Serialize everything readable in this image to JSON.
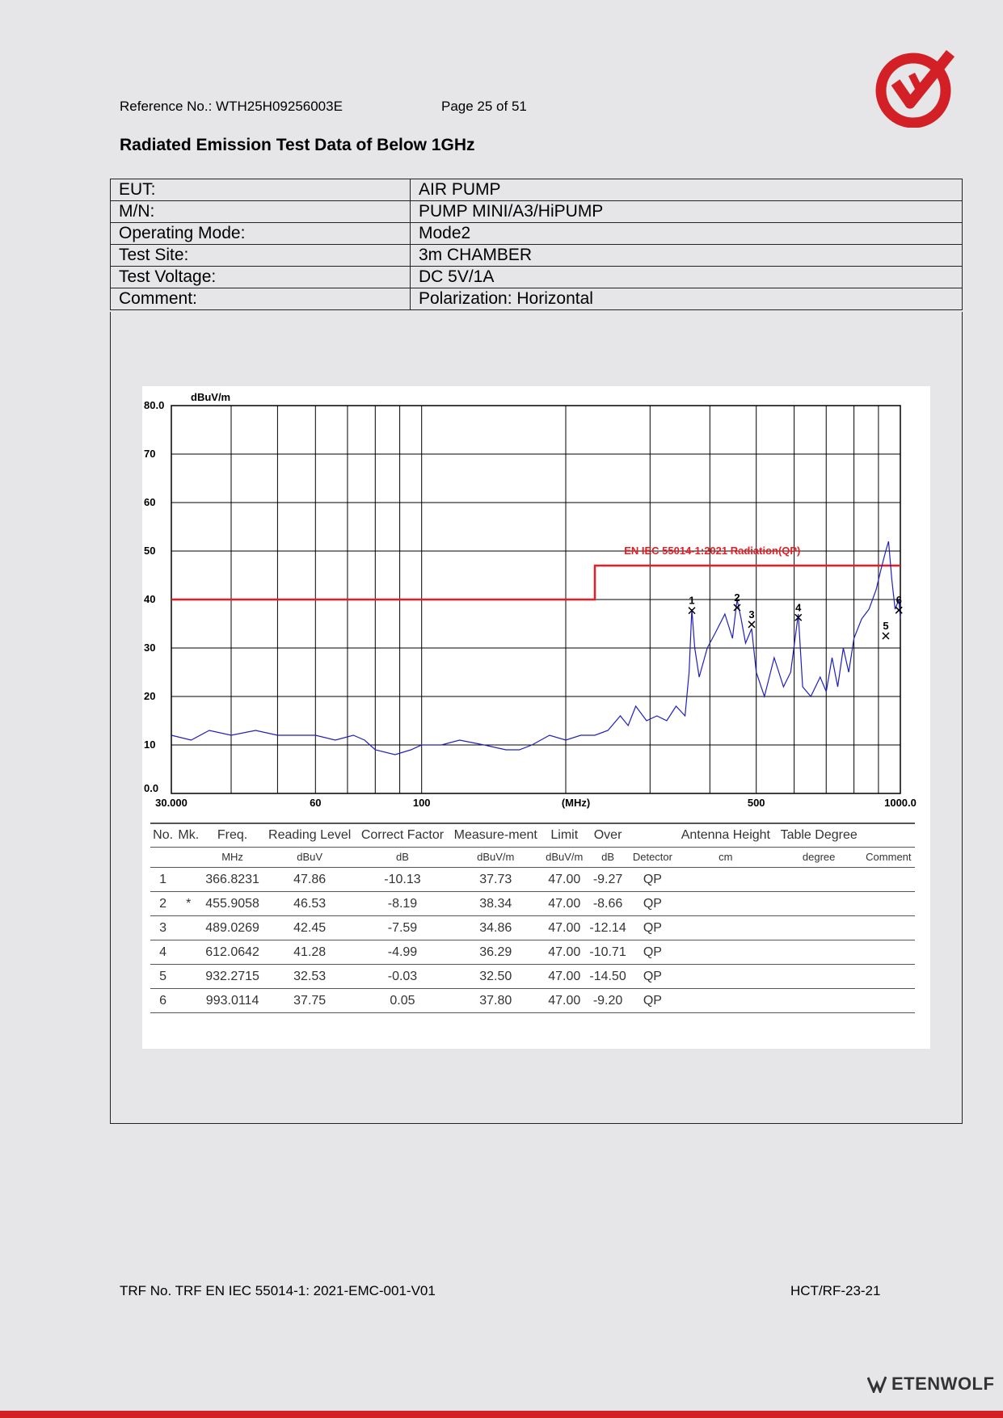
{
  "header": {
    "reference": "Reference No.: WTH25H09256003E",
    "page": "Page 25 of 51"
  },
  "title": "Radiated Emission Test Data of Below 1GHz",
  "info": [
    {
      "label": "EUT:",
      "value": "AIR PUMP"
    },
    {
      "label": "M/N:",
      "value": "PUMP MINI/A3/HiPUMP"
    },
    {
      "label": "Operating Mode:",
      "value": "Mode2"
    },
    {
      "label": "Test Site:",
      "value": "3m CHAMBER"
    },
    {
      "label": "Test Voltage:",
      "value": "DC 5V/1A"
    },
    {
      "label": "Comment:",
      "value": "Polarization: Horizontal"
    }
  ],
  "chart_data": {
    "type": "line",
    "title": "",
    "ylabel": "dBuV/m",
    "xlabel": "(MHz)",
    "xscale": "log",
    "xlim": [
      30,
      1000
    ],
    "ylim": [
      0,
      80
    ],
    "x_tick_labels": [
      "30.000",
      "60",
      "100",
      "(MHz)",
      "500",
      "1000.0"
    ],
    "y_tick_labels": [
      "80.0",
      "70",
      "60",
      "50",
      "40",
      "30",
      "20",
      "10",
      "0.0"
    ],
    "grid": true,
    "series": [
      {
        "name": "EN IEC 55014-1:2021 Radiation(QP)",
        "color": "#e31e24",
        "x": [
          30,
          230,
          230,
          1000
        ],
        "y": [
          40,
          40,
          47,
          47
        ]
      },
      {
        "name": "",
        "color": "#1f1fbf",
        "x": [
          30,
          33,
          36,
          40,
          45,
          50,
          55,
          60,
          66,
          72,
          76,
          80,
          88,
          95,
          100,
          110,
          120,
          135,
          150,
          160,
          170,
          185,
          200,
          215,
          230,
          245,
          260,
          270,
          280,
          295,
          310,
          325,
          340,
          355,
          362,
          366.8,
          372,
          380,
          395,
          410,
          430,
          446,
          456,
          465,
          475,
          489,
          500,
          520,
          545,
          570,
          590,
          612,
          625,
          650,
          680,
          700,
          720,
          740,
          760,
          780,
          800,
          830,
          860,
          890,
          910,
          932,
          945,
          960,
          975,
          993,
          1000
        ],
        "y": [
          12,
          11,
          13,
          12,
          13,
          12,
          12,
          12,
          11,
          12,
          11,
          9,
          8,
          9,
          10,
          10,
          11,
          10,
          9,
          9,
          10,
          12,
          11,
          12,
          12,
          13,
          16,
          14,
          18,
          15,
          16,
          15,
          18,
          16,
          25,
          38,
          30,
          24,
          30,
          33,
          37,
          32,
          40,
          36,
          31,
          34,
          25,
          20,
          28,
          22,
          25,
          37,
          22,
          20,
          24,
          21,
          28,
          22,
          30,
          25,
          32,
          36,
          38,
          42,
          46,
          50,
          52,
          44,
          38,
          40,
          36
        ]
      }
    ],
    "markers": [
      {
        "label": "1",
        "x": 366.8231,
        "y": 37.73
      },
      {
        "label": "2",
        "x": 455.9058,
        "y": 38.34
      },
      {
        "label": "3",
        "x": 489.0269,
        "y": 34.86
      },
      {
        "label": "4",
        "x": 612.0642,
        "y": 36.29
      },
      {
        "label": "5",
        "x": 932.2715,
        "y": 32.5
      },
      {
        "label": "6",
        "x": 993.0114,
        "y": 37.8
      }
    ]
  },
  "table": {
    "headers": [
      "No.",
      "Mk.",
      "Freq.",
      "Reading Level",
      "Correct Factor",
      "Measure-ment",
      "Limit",
      "Over",
      "",
      "Antenna Height",
      "Table Degree",
      ""
    ],
    "units": [
      "",
      "",
      "MHz",
      "dBuV",
      "dB",
      "dBuV/m",
      "dBuV/m",
      "dB",
      "Detector",
      "cm",
      "degree",
      "Comment"
    ],
    "rows": [
      [
        "1",
        "",
        "366.8231",
        "47.86",
        "-10.13",
        "37.73",
        "47.00",
        "-9.27",
        "QP",
        "",
        "",
        ""
      ],
      [
        "2",
        "*",
        "455.9058",
        "46.53",
        "-8.19",
        "38.34",
        "47.00",
        "-8.66",
        "QP",
        "",
        "",
        ""
      ],
      [
        "3",
        "",
        "489.0269",
        "42.45",
        "-7.59",
        "34.86",
        "47.00",
        "-12.14",
        "QP",
        "",
        "",
        ""
      ],
      [
        "4",
        "",
        "612.0642",
        "41.28",
        "-4.99",
        "36.29",
        "47.00",
        "-10.71",
        "QP",
        "",
        "",
        ""
      ],
      [
        "5",
        "",
        "932.2715",
        "32.53",
        "-0.03",
        "32.50",
        "47.00",
        "-14.50",
        "QP",
        "",
        "",
        ""
      ],
      [
        "6",
        "",
        "993.0114",
        "37.75",
        "0.05",
        "37.80",
        "47.00",
        "-9.20",
        "QP",
        "",
        "",
        ""
      ]
    ]
  },
  "footer": {
    "trf": "TRF No. TRF EN IEC 55014-1: 2021-EMC-001-V01",
    "code": "HCT/RF-23-21",
    "brand": "ETENWOLF"
  },
  "colors": {
    "accent": "#d32027",
    "limit": "#e31e24",
    "trace": "#1f1fbf"
  }
}
